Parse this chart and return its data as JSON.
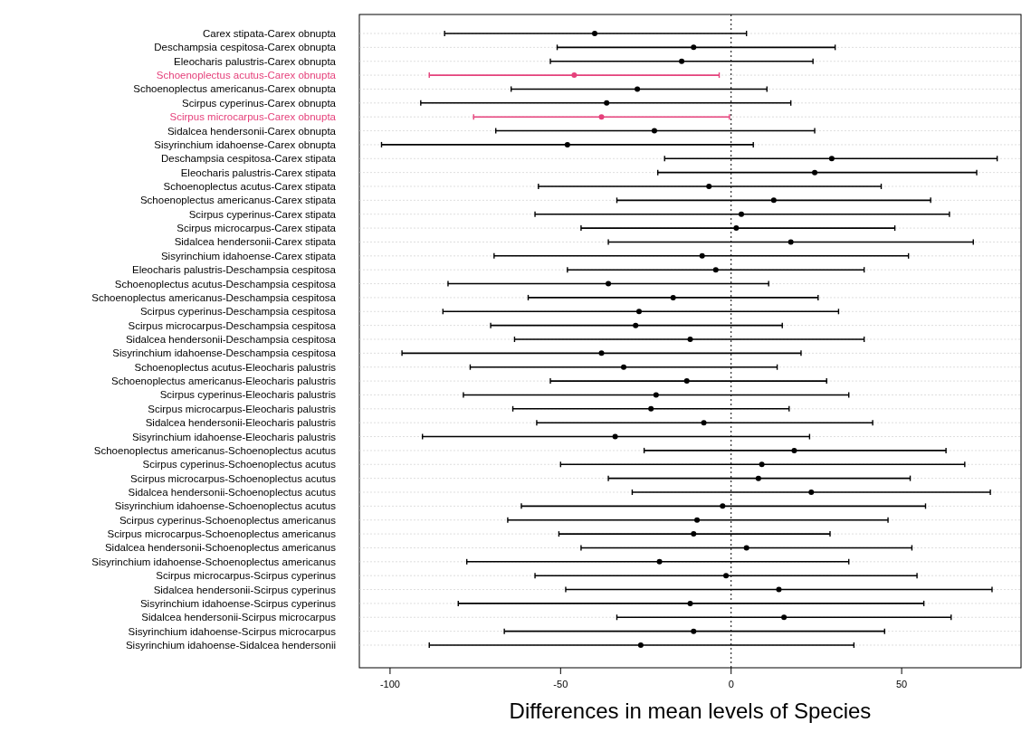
{
  "chart_data": {
    "type": "scatter",
    "orientation": "horizontal",
    "xlabel": "Differences in mean levels of Species",
    "categories": [
      "Carex stipata-Carex obnupta",
      "Deschampsia cespitosa-Carex obnupta",
      "Eleocharis palustris-Carex obnupta",
      "Schoenoplectus acutus-Carex obnupta",
      "Schoenoplectus americanus-Carex obnupta",
      "Scirpus cyperinus-Carex obnupta",
      "Scirpus microcarpus-Carex obnupta",
      "Sidalcea hendersonii-Carex obnupta",
      "Sisyrinchium idahoense-Carex obnupta",
      "Deschampsia cespitosa-Carex stipata",
      "Eleocharis palustris-Carex stipata",
      "Schoenoplectus acutus-Carex stipata",
      "Schoenoplectus americanus-Carex stipata",
      "Scirpus cyperinus-Carex stipata",
      "Scirpus microcarpus-Carex stipata",
      "Sidalcea hendersonii-Carex stipata",
      "Sisyrinchium idahoense-Carex stipata",
      "Eleocharis palustris-Deschampsia cespitosa",
      "Schoenoplectus acutus-Deschampsia cespitosa",
      "Schoenoplectus americanus-Deschampsia cespitosa",
      "Scirpus cyperinus-Deschampsia cespitosa",
      "Scirpus microcarpus-Deschampsia cespitosa",
      "Sidalcea hendersonii-Deschampsia cespitosa",
      "Sisyrinchium idahoense-Deschampsia cespitosa",
      "Schoenoplectus acutus-Eleocharis palustris",
      "Schoenoplectus americanus-Eleocharis palustris",
      "Scirpus cyperinus-Eleocharis palustris",
      "Scirpus microcarpus-Eleocharis palustris",
      "Sidalcea hendersonii-Eleocharis palustris",
      "Sisyrinchium idahoense-Eleocharis palustris",
      "Schoenoplectus americanus-Schoenoplectus acutus",
      "Scirpus cyperinus-Schoenoplectus acutus",
      "Scirpus microcarpus-Schoenoplectus acutus",
      "Sidalcea hendersonii-Schoenoplectus acutus",
      "Sisyrinchium idahoense-Schoenoplectus acutus",
      "Scirpus cyperinus-Schoenoplectus americanus",
      "Scirpus microcarpus-Schoenoplectus americanus",
      "Sidalcea hendersonii-Schoenoplectus americanus",
      "Sisyrinchium idahoense-Schoenoplectus americanus",
      "Scirpus microcarpus-Scirpus cyperinus",
      "Sidalcea hendersonii-Scirpus cyperinus",
      "Sisyrinchium idahoense-Scirpus cyperinus",
      "Sidalcea hendersonii-Scirpus microcarpus",
      "Sisyrinchium idahoense-Scirpus microcarpus",
      "Sisyrinchium idahoense-Sidalcea hendersonii"
    ],
    "values": [
      -40,
      -11,
      -14.5,
      -46,
      -27.5,
      -36.5,
      -38,
      -22.5,
      -48,
      29.5,
      24.5,
      -6.5,
      12.5,
      3,
      1.5,
      17.5,
      -8.5,
      -4.5,
      -36,
      -17,
      -27,
      -28,
      -12,
      -38,
      -31.5,
      -13,
      -22,
      -23.5,
      -8,
      -34,
      18.5,
      9,
      8,
      23.5,
      -2.5,
      -10,
      -11,
      4.5,
      -21,
      -1.5,
      14,
      -12,
      15.5,
      -11,
      -26.5
    ],
    "errors": [
      [
        -84,
        4.5
      ],
      [
        -51,
        30.5
      ],
      [
        -53,
        24
      ],
      [
        -88.5,
        -3.5
      ],
      [
        -64.5,
        10.5
      ],
      [
        -91,
        17.5
      ],
      [
        -75.5,
        -0.5
      ],
      [
        -69,
        24.5
      ],
      [
        -102.5,
        6.5
      ],
      [
        -19.5,
        78
      ],
      [
        -21.5,
        72
      ],
      [
        -56.5,
        44
      ],
      [
        -33.5,
        58.5
      ],
      [
        -57.5,
        64
      ],
      [
        -44,
        48
      ],
      [
        -36,
        71
      ],
      [
        -69.5,
        52
      ],
      [
        -48,
        39
      ],
      [
        -83,
        11
      ],
      [
        -59.5,
        25.5
      ],
      [
        -84.5,
        31.5
      ],
      [
        -70.5,
        15
      ],
      [
        -63.5,
        39
      ],
      [
        -96.5,
        20.5
      ],
      [
        -76.5,
        13.5
      ],
      [
        -53,
        28
      ],
      [
        -78.5,
        34.5
      ],
      [
        -64,
        17
      ],
      [
        -57,
        41.5
      ],
      [
        -90.5,
        23
      ],
      [
        -25.5,
        63
      ],
      [
        -50,
        68.5
      ],
      [
        -36,
        52.5
      ],
      [
        -29,
        76
      ],
      [
        -61.5,
        57
      ],
      [
        -65.5,
        46
      ],
      [
        -50.5,
        29
      ],
      [
        -44,
        53
      ],
      [
        -77.5,
        34.5
      ],
      [
        -57.5,
        54.5
      ],
      [
        -48.5,
        76.5
      ],
      [
        -80,
        56.5
      ],
      [
        -33.5,
        64.5
      ],
      [
        -66.5,
        45
      ],
      [
        -88.5,
        36
      ]
    ],
    "colors": [
      "#000000",
      "#000000",
      "#000000",
      "#e5417b",
      "#000000",
      "#000000",
      "#e5417b",
      "#000000",
      "#000000",
      "#000000",
      "#000000",
      "#000000",
      "#000000",
      "#000000",
      "#000000",
      "#000000",
      "#000000",
      "#000000",
      "#000000",
      "#000000",
      "#000000",
      "#000000",
      "#000000",
      "#000000",
      "#000000",
      "#000000",
      "#000000",
      "#000000",
      "#000000",
      "#000000",
      "#000000",
      "#000000",
      "#000000",
      "#000000",
      "#000000",
      "#000000",
      "#000000",
      "#000000",
      "#000000",
      "#000000",
      "#000000",
      "#000000",
      "#000000",
      "#000000",
      "#000000"
    ],
    "xlim": [
      -109,
      85
    ],
    "xticks": [
      -100,
      -50,
      0,
      50
    ],
    "ref_lines": [
      {
        "axis": "x",
        "value": 0,
        "line_style": "dotted"
      }
    ],
    "grid": "y",
    "marker": "circle"
  }
}
